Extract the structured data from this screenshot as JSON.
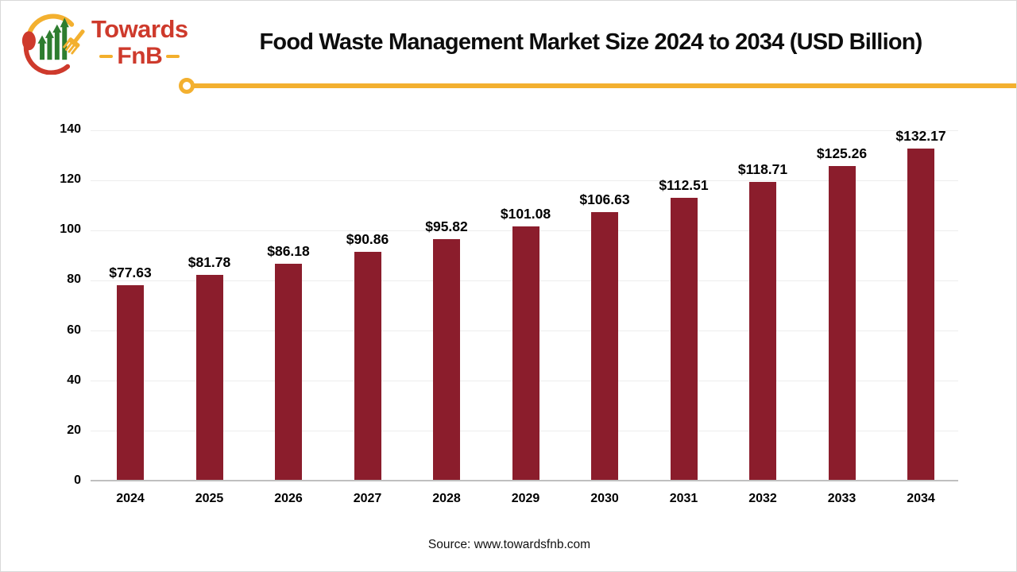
{
  "logo": {
    "brand_top": "Towards",
    "brand_bottom": "FnB",
    "colors": {
      "red": "#ce3a2c",
      "yellow": "#f3b02f",
      "green": "#2e7d2f"
    }
  },
  "header": {
    "title": "Food Waste Management Market Size 2024 to 2034 (USD Billion)"
  },
  "chart_data": {
    "type": "bar",
    "title": "Food Waste Management Market Size 2024 to 2034 (USD Billion)",
    "categories": [
      "2024",
      "2025",
      "2026",
      "2027",
      "2028",
      "2029",
      "2030",
      "2031",
      "2032",
      "2033",
      "2034"
    ],
    "values": [
      77.63,
      81.78,
      86.18,
      90.86,
      95.82,
      101.08,
      106.63,
      112.51,
      118.71,
      125.26,
      132.17
    ],
    "labels": [
      "$77.63",
      "$81.78",
      "$86.18",
      "$90.86",
      "$95.82",
      "$101.08",
      "$106.63",
      "$112.51",
      "$118.71",
      "$125.26",
      "$132.17"
    ],
    "xlabel": "",
    "ylabel": "",
    "ylim": [
      0,
      140
    ],
    "ytick_step": 20,
    "bar_color": "#8b1d2c",
    "grid": true,
    "legend": "none"
  },
  "footer": {
    "source": "Source: www.towardsfnb.com"
  }
}
